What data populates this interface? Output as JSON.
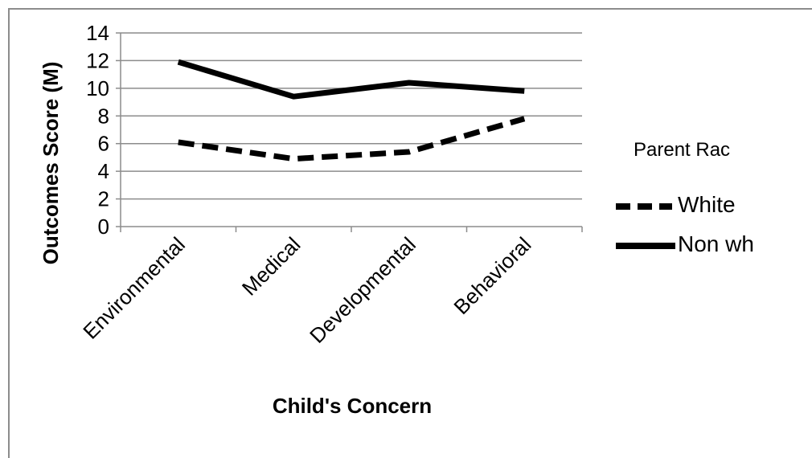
{
  "chart_data": {
    "type": "line",
    "categories": [
      "Environmental",
      "Medical",
      "Developmental",
      "Behavioral"
    ],
    "series": [
      {
        "name": "White",
        "values": [
          6.1,
          4.9,
          5.4,
          7.8
        ],
        "color": "#000000",
        "style": "dashed"
      },
      {
        "name": "Non wh",
        "values": [
          11.9,
          9.4,
          10.4,
          9.8
        ],
        "color": "#000000",
        "style": "solid"
      }
    ],
    "ylabel": "Outcomes Score (M)",
    "xlabel": "Child's Concern",
    "ylim": [
      0,
      14
    ],
    "yticks": [
      "0",
      "2",
      "4",
      "6",
      "8",
      "10",
      "12",
      "14"
    ],
    "grid": true,
    "legend": {
      "title": "Parent Rac",
      "placement": "right"
    }
  }
}
